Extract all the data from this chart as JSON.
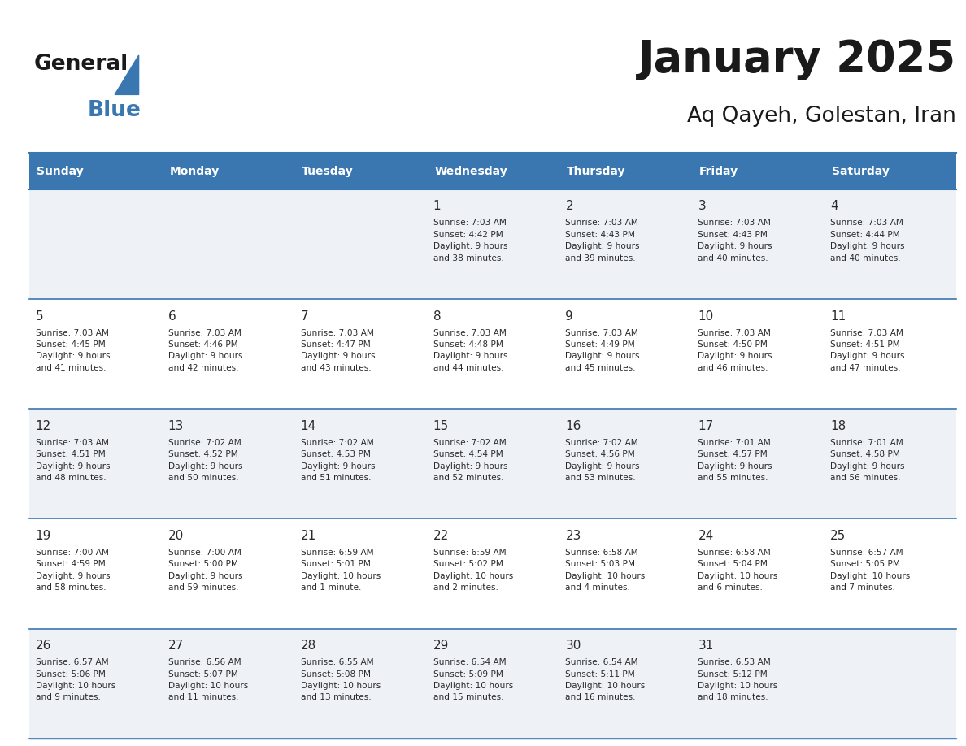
{
  "title": "January 2025",
  "subtitle": "Aq Qayeh, Golestan, Iran",
  "header_bg_color": "#3a77b0",
  "header_text_color": "#ffffff",
  "cell_bg_even": "#eef2f7",
  "cell_bg_odd": "#ffffff",
  "grid_line_color": "#3a77b0",
  "day_headers": [
    "Sunday",
    "Monday",
    "Tuesday",
    "Wednesday",
    "Thursday",
    "Friday",
    "Saturday"
  ],
  "calendar_data": [
    [
      {
        "day": "",
        "info": ""
      },
      {
        "day": "",
        "info": ""
      },
      {
        "day": "",
        "info": ""
      },
      {
        "day": "1",
        "info": "Sunrise: 7:03 AM\nSunset: 4:42 PM\nDaylight: 9 hours\nand 38 minutes."
      },
      {
        "day": "2",
        "info": "Sunrise: 7:03 AM\nSunset: 4:43 PM\nDaylight: 9 hours\nand 39 minutes."
      },
      {
        "day": "3",
        "info": "Sunrise: 7:03 AM\nSunset: 4:43 PM\nDaylight: 9 hours\nand 40 minutes."
      },
      {
        "day": "4",
        "info": "Sunrise: 7:03 AM\nSunset: 4:44 PM\nDaylight: 9 hours\nand 40 minutes."
      }
    ],
    [
      {
        "day": "5",
        "info": "Sunrise: 7:03 AM\nSunset: 4:45 PM\nDaylight: 9 hours\nand 41 minutes."
      },
      {
        "day": "6",
        "info": "Sunrise: 7:03 AM\nSunset: 4:46 PM\nDaylight: 9 hours\nand 42 minutes."
      },
      {
        "day": "7",
        "info": "Sunrise: 7:03 AM\nSunset: 4:47 PM\nDaylight: 9 hours\nand 43 minutes."
      },
      {
        "day": "8",
        "info": "Sunrise: 7:03 AM\nSunset: 4:48 PM\nDaylight: 9 hours\nand 44 minutes."
      },
      {
        "day": "9",
        "info": "Sunrise: 7:03 AM\nSunset: 4:49 PM\nDaylight: 9 hours\nand 45 minutes."
      },
      {
        "day": "10",
        "info": "Sunrise: 7:03 AM\nSunset: 4:50 PM\nDaylight: 9 hours\nand 46 minutes."
      },
      {
        "day": "11",
        "info": "Sunrise: 7:03 AM\nSunset: 4:51 PM\nDaylight: 9 hours\nand 47 minutes."
      }
    ],
    [
      {
        "day": "12",
        "info": "Sunrise: 7:03 AM\nSunset: 4:51 PM\nDaylight: 9 hours\nand 48 minutes."
      },
      {
        "day": "13",
        "info": "Sunrise: 7:02 AM\nSunset: 4:52 PM\nDaylight: 9 hours\nand 50 minutes."
      },
      {
        "day": "14",
        "info": "Sunrise: 7:02 AM\nSunset: 4:53 PM\nDaylight: 9 hours\nand 51 minutes."
      },
      {
        "day": "15",
        "info": "Sunrise: 7:02 AM\nSunset: 4:54 PM\nDaylight: 9 hours\nand 52 minutes."
      },
      {
        "day": "16",
        "info": "Sunrise: 7:02 AM\nSunset: 4:56 PM\nDaylight: 9 hours\nand 53 minutes."
      },
      {
        "day": "17",
        "info": "Sunrise: 7:01 AM\nSunset: 4:57 PM\nDaylight: 9 hours\nand 55 minutes."
      },
      {
        "day": "18",
        "info": "Sunrise: 7:01 AM\nSunset: 4:58 PM\nDaylight: 9 hours\nand 56 minutes."
      }
    ],
    [
      {
        "day": "19",
        "info": "Sunrise: 7:00 AM\nSunset: 4:59 PM\nDaylight: 9 hours\nand 58 minutes."
      },
      {
        "day": "20",
        "info": "Sunrise: 7:00 AM\nSunset: 5:00 PM\nDaylight: 9 hours\nand 59 minutes."
      },
      {
        "day": "21",
        "info": "Sunrise: 6:59 AM\nSunset: 5:01 PM\nDaylight: 10 hours\nand 1 minute."
      },
      {
        "day": "22",
        "info": "Sunrise: 6:59 AM\nSunset: 5:02 PM\nDaylight: 10 hours\nand 2 minutes."
      },
      {
        "day": "23",
        "info": "Sunrise: 6:58 AM\nSunset: 5:03 PM\nDaylight: 10 hours\nand 4 minutes."
      },
      {
        "day": "24",
        "info": "Sunrise: 6:58 AM\nSunset: 5:04 PM\nDaylight: 10 hours\nand 6 minutes."
      },
      {
        "day": "25",
        "info": "Sunrise: 6:57 AM\nSunset: 5:05 PM\nDaylight: 10 hours\nand 7 minutes."
      }
    ],
    [
      {
        "day": "26",
        "info": "Sunrise: 6:57 AM\nSunset: 5:06 PM\nDaylight: 10 hours\nand 9 minutes."
      },
      {
        "day": "27",
        "info": "Sunrise: 6:56 AM\nSunset: 5:07 PM\nDaylight: 10 hours\nand 11 minutes."
      },
      {
        "day": "28",
        "info": "Sunrise: 6:55 AM\nSunset: 5:08 PM\nDaylight: 10 hours\nand 13 minutes."
      },
      {
        "day": "29",
        "info": "Sunrise: 6:54 AM\nSunset: 5:09 PM\nDaylight: 10 hours\nand 15 minutes."
      },
      {
        "day": "30",
        "info": "Sunrise: 6:54 AM\nSunset: 5:11 PM\nDaylight: 10 hours\nand 16 minutes."
      },
      {
        "day": "31",
        "info": "Sunrise: 6:53 AM\nSunset: 5:12 PM\nDaylight: 10 hours\nand 18 minutes."
      },
      {
        "day": "",
        "info": ""
      }
    ]
  ],
  "logo_text1": "General",
  "logo_text2": "Blue",
  "logo_color1": "#1a1a1a",
  "logo_color2": "#3a77b0",
  "logo_triangle_color": "#3a77b0"
}
